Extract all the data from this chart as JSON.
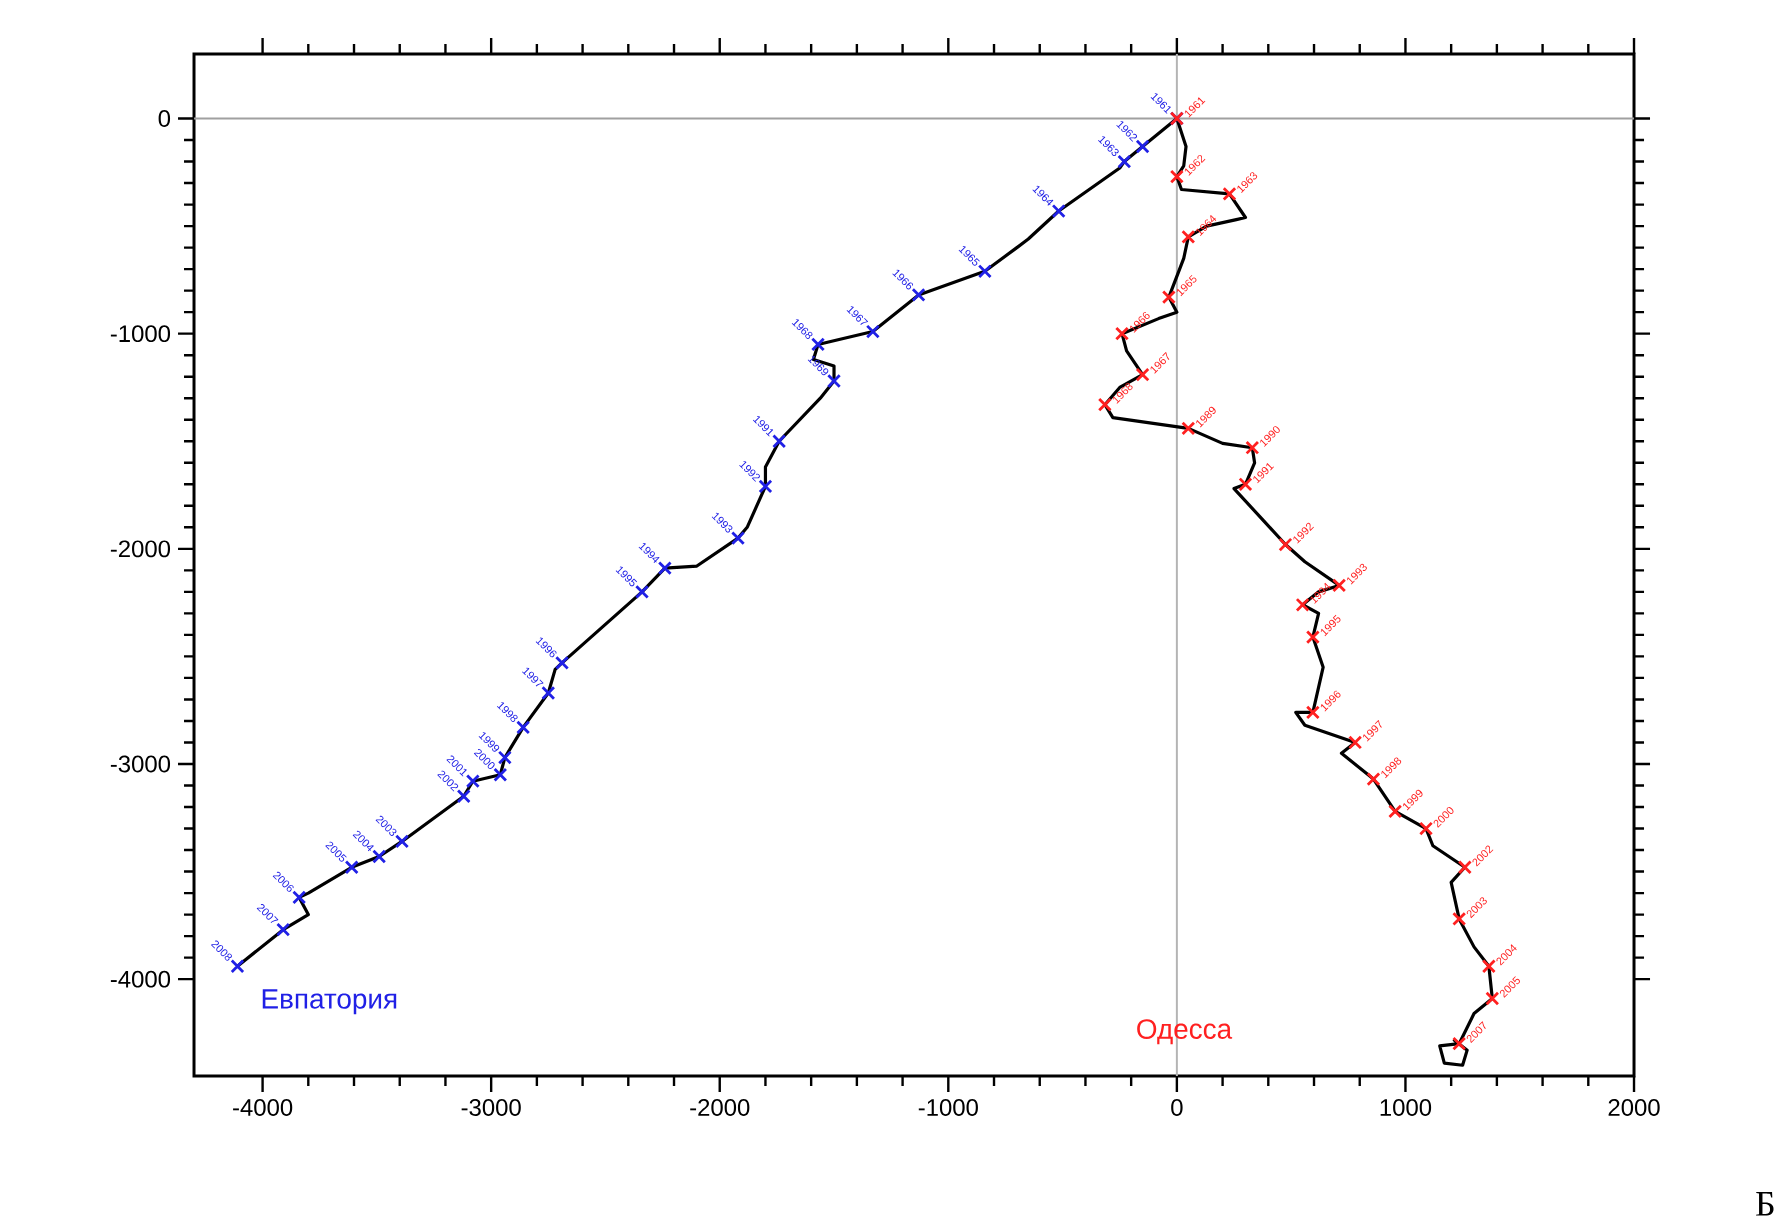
{
  "chart_data": {
    "type": "line",
    "annotations": [
      "Б",
      {
        "text": "1961",
        "x": 0,
        "y": 0
      },
      {
        "text": "1962",
        "x": -150,
        "y": -130
      },
      {
        "text": "1963",
        "x": -230,
        "y": -200
      },
      {
        "text": "1964",
        "x": -517,
        "y": -430
      },
      {
        "text": "1965",
        "x": -840,
        "y": -710
      },
      {
        "text": "1966",
        "x": -1130,
        "y": -820
      },
      {
        "text": "1967",
        "x": -1330,
        "y": -990
      },
      {
        "text": "1968",
        "x": -1570,
        "y": -1050
      },
      {
        "text": "1969",
        "x": -1500,
        "y": -1220
      },
      {
        "text": "1991",
        "x": -1740,
        "y": -1500
      },
      {
        "text": "1992",
        "x": -1800,
        "y": -1710
      },
      {
        "text": "1993",
        "x": -1920,
        "y": -1950
      },
      {
        "text": "1994",
        "x": -2240,
        "y": -2090
      },
      {
        "text": "1995",
        "x": -2340,
        "y": -2200
      },
      {
        "text": "1996",
        "x": -2690,
        "y": -2530
      },
      {
        "text": "1997",
        "x": -2750,
        "y": -2670
      },
      {
        "text": "1998",
        "x": -2860,
        "y": -2830
      },
      {
        "text": "1999",
        "x": -2940,
        "y": -2970
      },
      {
        "text": "2000",
        "x": -2960,
        "y": -3050
      },
      {
        "text": "2001",
        "x": -3080,
        "y": -3080
      },
      {
        "text": "2002",
        "x": -3120,
        "y": -3150
      },
      {
        "text": "2003",
        "x": -3390,
        "y": -3360
      },
      {
        "text": "2004",
        "x": -3490,
        "y": -3430
      },
      {
        "text": "2005",
        "x": -3610,
        "y": -3480
      },
      {
        "text": "2006",
        "x": -3840,
        "y": -3620
      },
      {
        "text": "2007",
        "x": -3910,
        "y": -3770
      },
      {
        "text": "2008",
        "x": -4110,
        "y": -3940
      },
      {
        "text": "1961",
        "x": 0,
        "y": 0
      },
      {
        "text": "1962",
        "x": 0,
        "y": -270
      },
      {
        "text": "1963",
        "x": 230,
        "y": -350
      },
      {
        "text": "1964",
        "x": 50,
        "y": -550
      },
      {
        "text": "1965",
        "x": -35,
        "y": -830
      },
      {
        "text": "1966",
        "x": -240,
        "y": -1000
      },
      {
        "text": "1967",
        "x": -150,
        "y": -1190
      },
      {
        "text": "1968",
        "x": -315,
        "y": -1330
      },
      {
        "text": "1989",
        "x": 50,
        "y": -1440
      },
      {
        "text": "1990",
        "x": 330,
        "y": -1530
      },
      {
        "text": "1991",
        "x": 300,
        "y": -1700
      },
      {
        "text": "1992",
        "x": 475,
        "y": -1980
      },
      {
        "text": "1993",
        "x": 710,
        "y": -2170
      },
      {
        "text": "1994",
        "x": 550,
        "y": -2260
      },
      {
        "text": "1995",
        "x": 595,
        "y": -2410
      },
      {
        "text": "1996",
        "x": 595,
        "y": -2760
      },
      {
        "text": "1997",
        "x": 780,
        "y": -2900
      },
      {
        "text": "1998",
        "x": 860,
        "y": -3070
      },
      {
        "text": "1999",
        "x": 955,
        "y": -3220
      },
      {
        "text": "2000",
        "x": 1090,
        "y": -3300
      },
      {
        "text": "2002",
        "x": 1260,
        "y": -3480
      },
      {
        "text": "2003",
        "x": 1235,
        "y": -3720
      },
      {
        "text": "2004",
        "x": 1365,
        "y": -3940
      },
      {
        "text": "2005",
        "x": 1380,
        "y": -4090
      },
      {
        "text": "2007",
        "x": 1235,
        "y": -4300
      }
    ],
    "xlim": [
      -4300,
      2000
    ],
    "ylim": [
      -4450,
      300
    ],
    "xticks": [
      -4000,
      -3000,
      -2000,
      -1000,
      0,
      1000,
      2000
    ],
    "yticks": [
      0,
      -1000,
      -2000,
      -3000,
      -4000
    ],
    "ref_lines": [
      {
        "axis": "x",
        "value": 0,
        "color": "#b4b4b4"
      },
      {
        "axis": "y",
        "value": 0,
        "color": "#a0a0a0"
      }
    ],
    "series": [
      {
        "color": "#000000",
        "x": [
          0,
          -150,
          -230,
          -250,
          -517,
          -650,
          -700,
          -840,
          -1130,
          -1330,
          -1570,
          -1590,
          -1500,
          -1500,
          -1560,
          -1740,
          -1800,
          -1800,
          -1880,
          -1920,
          -2100,
          -2240,
          -2340,
          -2690,
          -2720,
          -2750,
          -2860,
          -2940,
          -2960,
          -3080,
          -3120,
          -3390,
          -3490,
          -3610,
          -3800,
          -3840,
          -3800,
          -3910,
          -4110
        ],
        "values": [
          0,
          -130,
          -200,
          -230,
          -430,
          -560,
          -600,
          -710,
          -820,
          -990,
          -1050,
          -1120,
          -1150,
          -1220,
          -1300,
          -1500,
          -1620,
          -1710,
          -1900,
          -1950,
          -2080,
          -2090,
          -2200,
          -2530,
          -2560,
          -2670,
          -2830,
          -2970,
          -3050,
          -3080,
          -3150,
          -3360,
          -3430,
          -3480,
          -3600,
          -3620,
          -3700,
          -3770,
          -3940
        ]
      },
      {
        "color": "#000000",
        "x": [
          0,
          40,
          30,
          0,
          20,
          230,
          300,
          260,
          130,
          50,
          30,
          -35,
          0,
          -80,
          -240,
          -220,
          -150,
          -250,
          -315,
          -280,
          50,
          200,
          330,
          340,
          300,
          250,
          380,
          475,
          560,
          710,
          620,
          550,
          620,
          595,
          640,
          595,
          520,
          560,
          780,
          720,
          860,
          955,
          1090,
          1120,
          1260,
          1200,
          1235,
          1300,
          1365,
          1380,
          1300,
          1235,
          1150,
          1170,
          1250,
          1270,
          1210
        ],
        "values": [
          0,
          -130,
          -220,
          -270,
          -330,
          -350,
          -460,
          -470,
          -500,
          -550,
          -650,
          -830,
          -900,
          -930,
          -1000,
          -1080,
          -1190,
          -1250,
          -1330,
          -1390,
          -1440,
          -1510,
          -1530,
          -1600,
          -1700,
          -1720,
          -1870,
          -1980,
          -2060,
          -2170,
          -2200,
          -2260,
          -2300,
          -2410,
          -2550,
          -2760,
          -2760,
          -2820,
          -2900,
          -2950,
          -3070,
          -3220,
          -3300,
          -3380,
          -3480,
          -3550,
          -3720,
          -3850,
          -3940,
          -4090,
          -4160,
          -4300,
          -4310,
          -4390,
          -4400,
          -4330,
          -4280
        ]
      },
      {
        "type": "scatter",
        "name": "Евпатория",
        "color": "#2020e6",
        "marker": "cross",
        "x": [
          0,
          -150,
          -230,
          -517,
          -840,
          -1130,
          -1330,
          -1570,
          -1500,
          -1740,
          -1800,
          -1920,
          -2240,
          -2340,
          -2690,
          -2750,
          -2860,
          -2940,
          -2960,
          -3080,
          -3120,
          -3390,
          -3490,
          -3610,
          -3840,
          -3910,
          -4110
        ],
        "values": [
          0,
          -130,
          -200,
          -430,
          -710,
          -820,
          -990,
          -1050,
          -1220,
          -1500,
          -1710,
          -1950,
          -2090,
          -2200,
          -2530,
          -2670,
          -2830,
          -2970,
          -3050,
          -3080,
          -3150,
          -3360,
          -3430,
          -3480,
          -3620,
          -3770,
          -3940
        ]
      },
      {
        "type": "scatter",
        "name": "Одесса",
        "color": "#ff2020",
        "marker": "cross",
        "x": [
          0,
          0,
          230,
          50,
          -35,
          -240,
          -150,
          -315,
          50,
          330,
          300,
          475,
          710,
          550,
          595,
          595,
          780,
          860,
          955,
          1090,
          1260,
          1235,
          1365,
          1380,
          1235
        ],
        "values": [
          0,
          -270,
          -350,
          -550,
          -830,
          -1000,
          -1190,
          -1330,
          -1440,
          -1530,
          -1700,
          -1980,
          -2170,
          -2260,
          -2410,
          -2760,
          -2900,
          -3070,
          -3220,
          -3300,
          -3480,
          -3720,
          -3940,
          -4090,
          -4300
        ]
      }
    ]
  }
}
